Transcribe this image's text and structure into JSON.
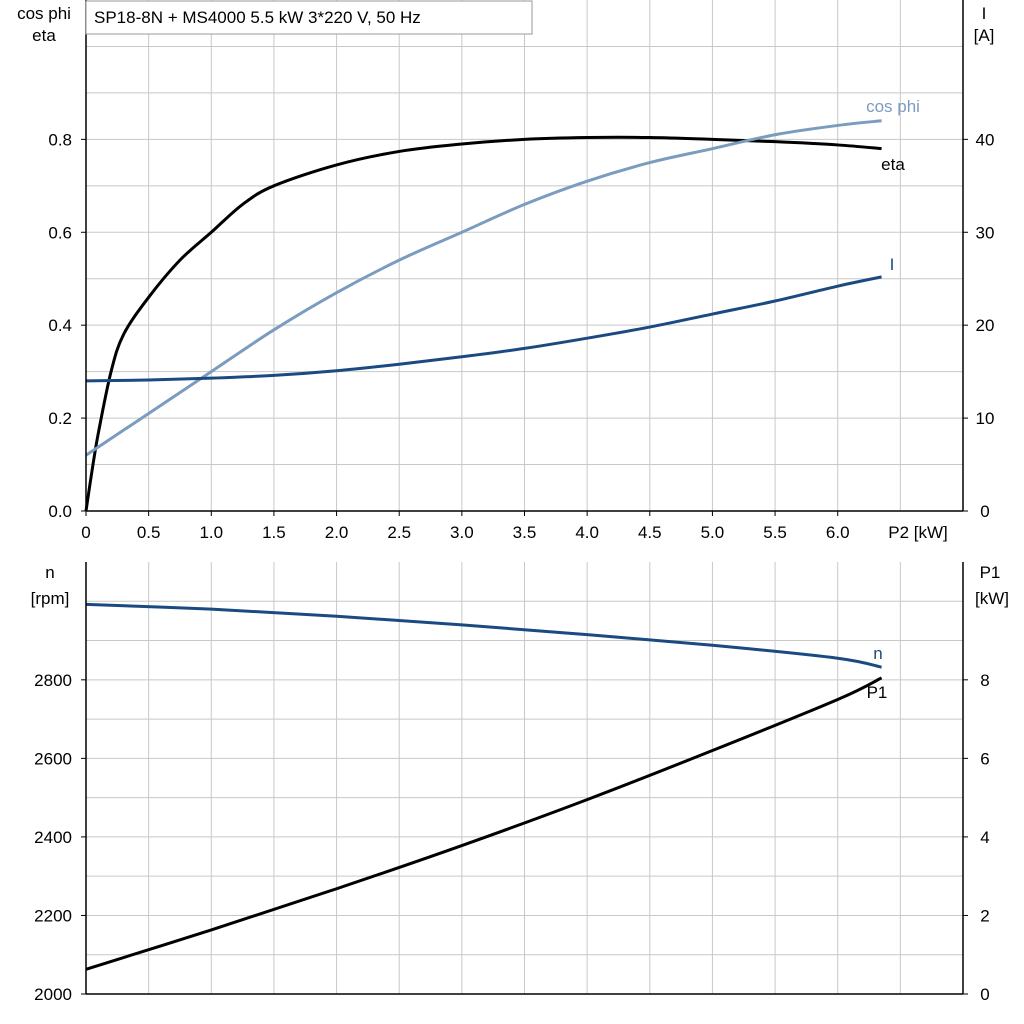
{
  "title": "SP18-8N + MS4000   5.5 kW   3*220 V, 50 Hz",
  "colors": {
    "eta": "#000000",
    "cos_phi": "#7a9cbf",
    "I": "#1a4a80",
    "n": "#1a4a80",
    "P1": "#000000",
    "grid": "#c8c8c8"
  },
  "chart_data": [
    {
      "type": "line",
      "xlabel": "P2 [kW]",
      "ylabel_left": [
        "cos phi",
        "eta"
      ],
      "ylabel_right": [
        "I",
        "[A]"
      ],
      "xlim": [
        0,
        7
      ],
      "ylim_left": [
        0,
        1.1
      ],
      "ylim_right": [
        0,
        55
      ],
      "grid": true,
      "x_ticks": [
        "0",
        "0.5",
        "1.0",
        "1.5",
        "2.0",
        "2.5",
        "3.0",
        "3.5",
        "4.0",
        "4.5",
        "5.0",
        "5.5",
        "6.0"
      ],
      "y_ticks_left": [
        "0.0",
        "0.2",
        "0.4",
        "0.6",
        "0.8"
      ],
      "y_ticks_right": [
        "0",
        "10",
        "20",
        "30",
        "40"
      ],
      "series": [
        {
          "name": "eta",
          "axis": "left",
          "x": [
            0,
            0.05,
            0.1,
            0.2,
            0.3,
            0.5,
            0.75,
            1.0,
            1.25,
            1.5,
            2.0,
            2.5,
            3.0,
            3.5,
            4.0,
            4.5,
            5.0,
            5.5,
            6.0,
            6.35
          ],
          "y": [
            0,
            0.09,
            0.17,
            0.3,
            0.38,
            0.46,
            0.54,
            0.6,
            0.66,
            0.7,
            0.745,
            0.774,
            0.79,
            0.8,
            0.804,
            0.804,
            0.8,
            0.795,
            0.788,
            0.78
          ]
        },
        {
          "name": "cos phi",
          "axis": "left",
          "x": [
            0,
            0.5,
            1.0,
            1.5,
            2.0,
            2.5,
            3.0,
            3.5,
            4.0,
            4.5,
            5.0,
            5.5,
            6.0,
            6.35
          ],
          "y": [
            0.12,
            0.21,
            0.3,
            0.39,
            0.47,
            0.54,
            0.6,
            0.66,
            0.71,
            0.75,
            0.78,
            0.81,
            0.83,
            0.84
          ]
        },
        {
          "name": "I",
          "axis": "right",
          "x": [
            0,
            0.5,
            1.0,
            1.5,
            2.0,
            2.5,
            3.0,
            3.5,
            4.0,
            4.5,
            5.0,
            5.5,
            6.0,
            6.35
          ],
          "y": [
            14.0,
            14.1,
            14.3,
            14.6,
            15.1,
            15.8,
            16.6,
            17.5,
            18.6,
            19.8,
            21.2,
            22.6,
            24.2,
            25.2
          ]
        }
      ]
    },
    {
      "type": "line",
      "ylabel_left": [
        "n",
        "[rpm]"
      ],
      "ylabel_right": [
        "P1",
        "[kW]"
      ],
      "xlim": [
        0,
        7
      ],
      "ylim_left": [
        2000,
        3100
      ],
      "ylim_right": [
        0,
        11
      ],
      "grid": true,
      "y_ticks_left": [
        "2000",
        "2200",
        "2400",
        "2600",
        "2800"
      ],
      "y_ticks_right": [
        "0",
        "2",
        "4",
        "6",
        "8"
      ],
      "series": [
        {
          "name": "n",
          "axis": "left",
          "x": [
            0,
            1,
            2,
            3,
            4,
            5,
            6,
            6.35
          ],
          "y": [
            2992,
            2980,
            2962,
            2940,
            2915,
            2888,
            2855,
            2832
          ]
        },
        {
          "name": "P1",
          "axis": "right",
          "x": [
            0,
            1,
            2,
            3,
            4,
            5,
            6,
            6.35
          ],
          "y": [
            0.63,
            1.63,
            2.68,
            3.78,
            4.95,
            6.2,
            7.5,
            8.05
          ]
        }
      ]
    }
  ]
}
